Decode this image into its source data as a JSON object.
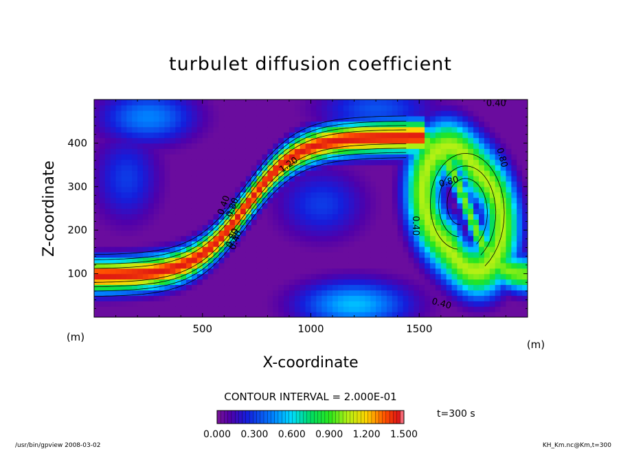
{
  "chart_data": {
    "type": "heatmap",
    "title": "turbulet diffusion coefficient",
    "xlabel": "X-coordinate",
    "ylabel": "Z-coordinate",
    "x_unit": "(m)",
    "y_unit": "(m)",
    "xlim": [
      0,
      2000
    ],
    "ylim": [
      0,
      500
    ],
    "x_ticks": [
      500,
      1000,
      1500
    ],
    "y_ticks": [
      100,
      200,
      300,
      400
    ],
    "contour_interval_text": "CONTOUR INTERVAL = 2.000E-01",
    "contour_interval": 0.2,
    "contour_labels": [
      {
        "text": "0.40",
        "x": 1855,
        "y": 485,
        "angle": 0
      },
      {
        "text": "0.80",
        "x": 1870,
        "y": 365,
        "angle": 75
      },
      {
        "text": "0.80",
        "x": 1640,
        "y": 305,
        "angle": -15
      },
      {
        "text": "0.40",
        "x": 1470,
        "y": 210,
        "angle": 90
      },
      {
        "text": "1.20",
        "x": 905,
        "y": 345,
        "angle": -35
      },
      {
        "text": "0.40",
        "x": 610,
        "y": 255,
        "angle": -70
      },
      {
        "text": "0.80",
        "x": 650,
        "y": 250,
        "angle": -70
      },
      {
        "text": "0.80",
        "x": 650,
        "y": 180,
        "angle": -70
      },
      {
        "text": "0.40",
        "x": 665,
        "y": 175,
        "angle": -70
      },
      {
        "text": "0.40",
        "x": 1600,
        "y": 25,
        "angle": 15
      }
    ],
    "colorbar": {
      "min": 0.0,
      "max": 1.5,
      "tick_labels": [
        "0.000",
        "0.300",
        "0.600",
        "0.900",
        "1.200",
        "1.500"
      ]
    },
    "time_label": "t=300 s",
    "colors": {
      "low": "#7a1496",
      "mid_low": "#1e2ae0",
      "mid": "#00e0ff",
      "mid_high": "#00e040",
      "high": "#ffd000",
      "peak": "#e01010"
    }
  },
  "footer": {
    "left": "/usr/bin/gpview   2008-03-02",
    "right": "KH_Km.nc@Km,t=300"
  }
}
